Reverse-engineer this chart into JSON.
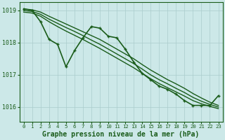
{
  "background_color": "#cce8e8",
  "grid_color": "#aacccc",
  "line_color": "#1a5c1a",
  "xlim": [
    -0.5,
    23.5
  ],
  "ylim": [
    1015.55,
    1019.25
  ],
  "yticks": [
    1016,
    1017,
    1018,
    1019
  ],
  "xticks": [
    0,
    1,
    2,
    3,
    4,
    5,
    6,
    7,
    8,
    9,
    10,
    11,
    12,
    13,
    14,
    15,
    16,
    17,
    18,
    19,
    20,
    21,
    22,
    23
  ],
  "xlabel": "Graphe pression niveau de la mer (hPa)",
  "series": [
    {
      "x": [
        0,
        1,
        2,
        3,
        4,
        5,
        6,
        7,
        8,
        9,
        10,
        11,
        12,
        13,
        14,
        15,
        16,
        17,
        18,
        19,
        20,
        21,
        22,
        23
      ],
      "y": [
        1019.05,
        1019.02,
        1018.95,
        1018.82,
        1018.7,
        1018.58,
        1018.46,
        1018.34,
        1018.22,
        1018.1,
        1017.95,
        1017.8,
        1017.65,
        1017.5,
        1017.32,
        1017.15,
        1017.0,
        1016.85,
        1016.72,
        1016.58,
        1016.42,
        1016.28,
        1016.15,
        1016.05
      ],
      "has_markers": false,
      "linewidth": 1.0
    },
    {
      "x": [
        0,
        1,
        2,
        3,
        4,
        5,
        6,
        7,
        8,
        9,
        10,
        11,
        12,
        13,
        14,
        15,
        16,
        17,
        18,
        19,
        20,
        21,
        22,
        23
      ],
      "y": [
        1019.0,
        1018.97,
        1018.88,
        1018.73,
        1018.6,
        1018.47,
        1018.35,
        1018.22,
        1018.08,
        1017.95,
        1017.8,
        1017.65,
        1017.5,
        1017.35,
        1017.18,
        1017.0,
        1016.85,
        1016.72,
        1016.58,
        1016.45,
        1016.3,
        1016.18,
        1016.08,
        1016.0
      ],
      "has_markers": false,
      "linewidth": 1.0
    },
    {
      "x": [
        0,
        1,
        2,
        3,
        4,
        5,
        6,
        7,
        8,
        9,
        10,
        11,
        12,
        13,
        14,
        15,
        16,
        17,
        18,
        19,
        20,
        21,
        22,
        23
      ],
      "y": [
        1018.95,
        1018.92,
        1018.82,
        1018.65,
        1018.5,
        1018.36,
        1018.23,
        1018.1,
        1017.96,
        1017.82,
        1017.67,
        1017.52,
        1017.37,
        1017.22,
        1017.05,
        1016.88,
        1016.73,
        1016.6,
        1016.47,
        1016.34,
        1016.2,
        1016.1,
        1016.02,
        1015.95
      ],
      "has_markers": false,
      "linewidth": 1.0
    },
    {
      "x": [
        0,
        1,
        2,
        3,
        4,
        5,
        6,
        7,
        8,
        9,
        10,
        11,
        12,
        13,
        14,
        15,
        16,
        17,
        18,
        19,
        20,
        21,
        22,
        23
      ],
      "y": [
        1019.05,
        1019.0,
        1018.65,
        1018.1,
        1017.95,
        1017.25,
        1017.75,
        1018.15,
        1018.5,
        1018.45,
        1018.2,
        1018.15,
        1017.8,
        1017.4,
        1017.05,
        1016.85,
        1016.65,
        1016.55,
        1016.4,
        1016.2,
        1016.05,
        1016.05,
        1016.05,
        1016.35
      ],
      "has_markers": true,
      "linewidth": 1.2
    }
  ],
  "tick_fontsize": 6,
  "xlabel_fontsize": 7,
  "tick_color": "#1a5c1a",
  "axis_color": "#1a5c1a"
}
